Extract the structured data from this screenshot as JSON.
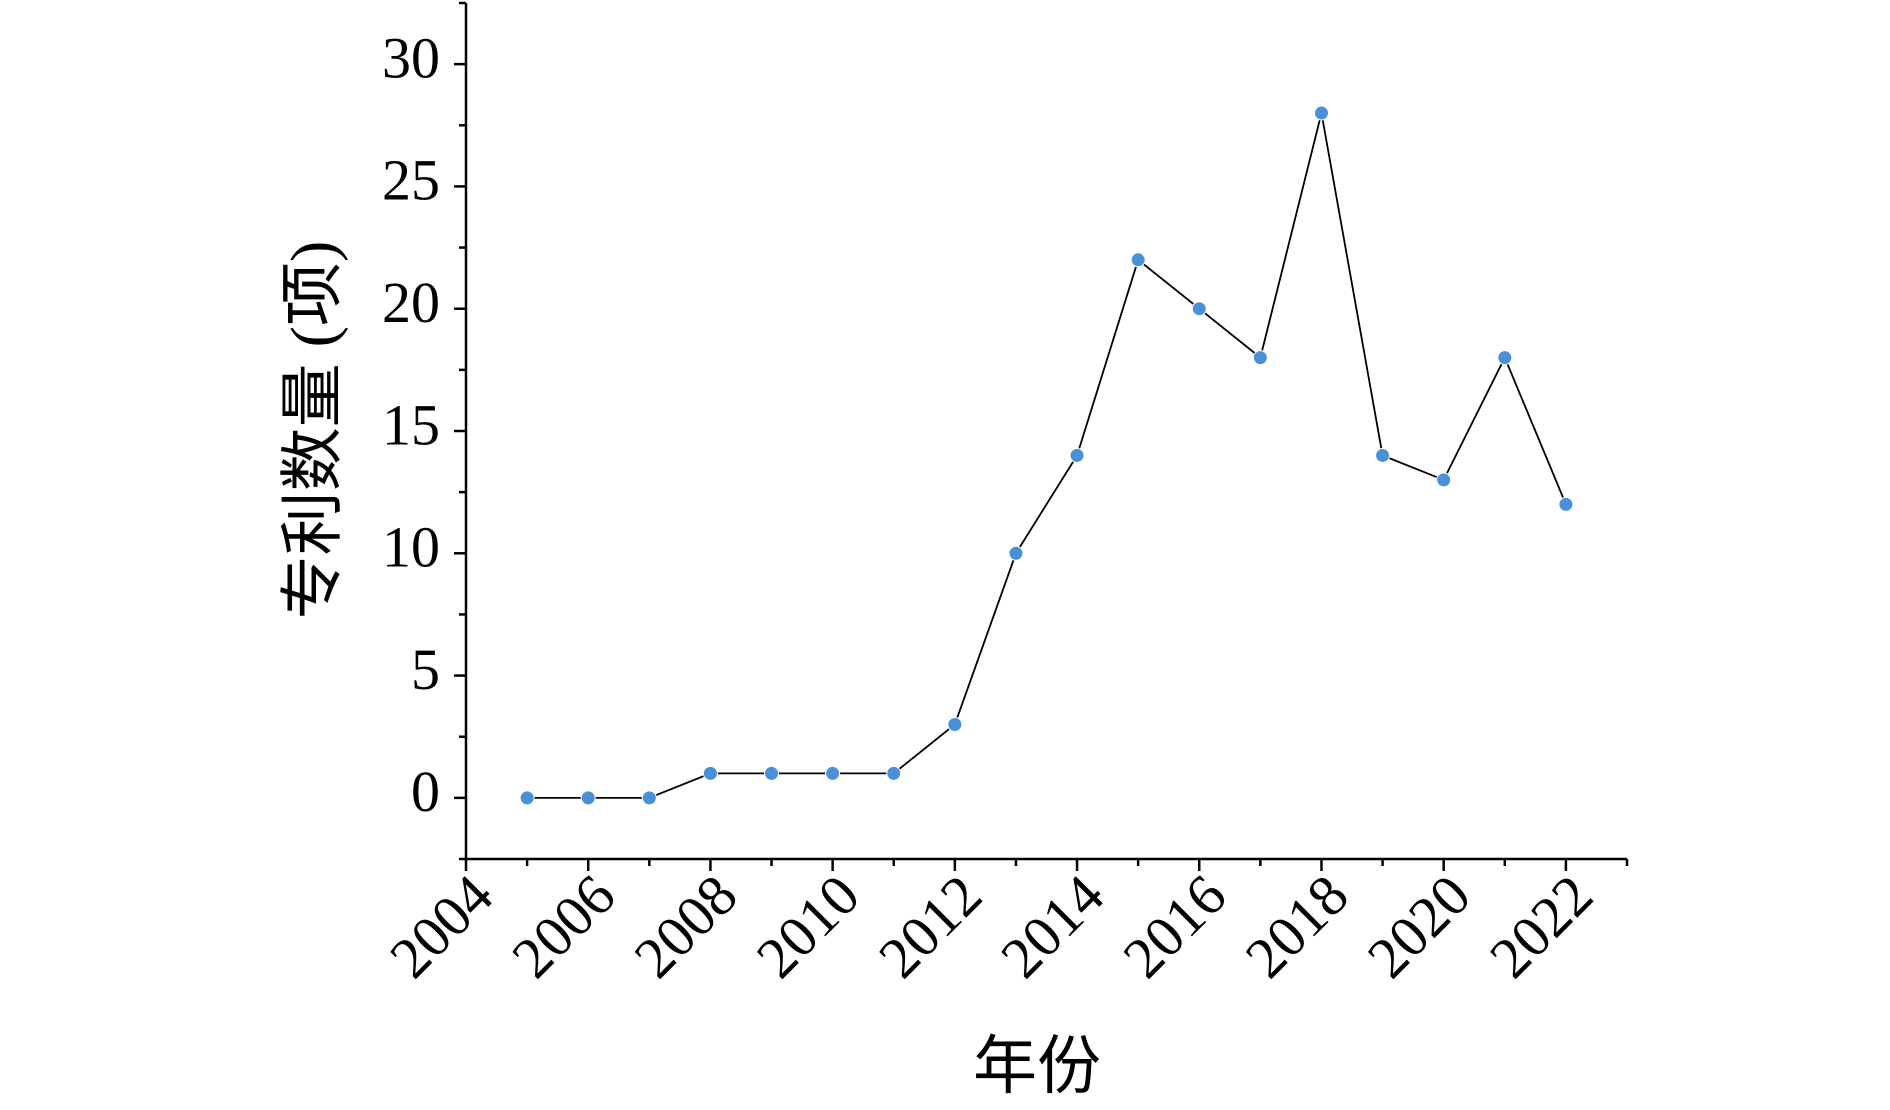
{
  "chart_data": {
    "type": "line",
    "x_label": "年份",
    "y_label": "专利数量 (项)",
    "x": [
      2005,
      2006,
      2007,
      2008,
      2009,
      2010,
      2011,
      2012,
      2013,
      2014,
      2015,
      2016,
      2017,
      2018,
      2019,
      2020,
      2021,
      2022
    ],
    "series": [
      {
        "color": "#4a90d9",
        "line_color": "#000000",
        "values": [
          0,
          0,
          0,
          1,
          1,
          1,
          1,
          3,
          10,
          14,
          22,
          20,
          18,
          28,
          14,
          13,
          18,
          12
        ]
      }
    ],
    "xlim": [
      2004,
      2023
    ],
    "xticks": [
      2004,
      2006,
      2008,
      2010,
      2012,
      2014,
      2016,
      2018,
      2020,
      2022
    ],
    "ylim": [
      -2.5,
      32.5
    ],
    "yticks": [
      0,
      5,
      10,
      15,
      20,
      25,
      30
    ],
    "grid": false
  }
}
